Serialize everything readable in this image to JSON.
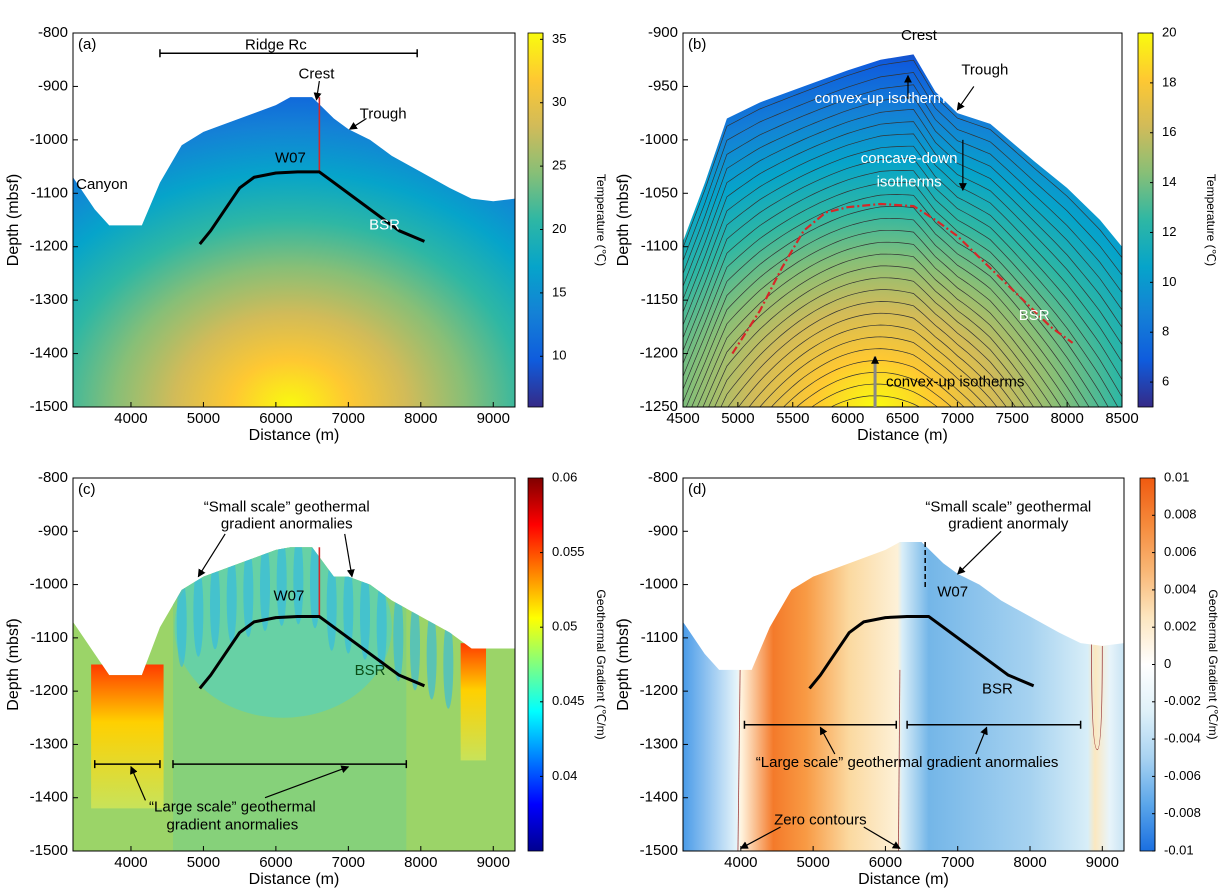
{
  "chart_data": [
    {
      "type": "heatmap",
      "panel": "(a)",
      "xlabel": "Distance (m)",
      "ylabel": "Depth (mbsf)",
      "xlim": [
        3200,
        9300
      ],
      "ylim": [
        -1500,
        -800
      ],
      "xticks": [
        4000,
        5000,
        6000,
        7000,
        8000,
        9000
      ],
      "yticks": [
        -1500,
        -1400,
        -1300,
        -1200,
        -1100,
        -1000,
        -900,
        -800
      ],
      "colormap": "parula",
      "clim": [
        6,
        35.5
      ],
      "cticks": [
        10,
        15,
        20,
        25,
        30,
        35
      ],
      "clabel": "Temperature (℃)",
      "seafloor": {
        "x": [
          3200,
          3500,
          3700,
          4150,
          4400,
          4700,
          5000,
          5500,
          6000,
          6200,
          6500,
          6800,
          7000,
          7300,
          7600,
          8000,
          8400,
          8700,
          9000,
          9300
        ],
        "y": [
          -1070,
          -1130,
          -1160,
          -1160,
          -1080,
          -1010,
          -985,
          -960,
          -935,
          -920,
          -920,
          -960,
          -980,
          -1000,
          -1030,
          -1060,
          -1090,
          -1110,
          -1115,
          -1110
        ]
      },
      "well": {
        "name": "W07",
        "x": 6600,
        "top": -920,
        "bottom": -1060,
        "color": "#d62728",
        "dash": false
      },
      "series": [
        {
          "name": "BSR",
          "color": "#000000",
          "x": [
            4950,
            5100,
            5300,
            5500,
            5700,
            6000,
            6300,
            6600,
            6800,
            7100,
            7400,
            7700,
            8050
          ],
          "values": [
            -1195,
            -1170,
            -1130,
            -1090,
            -1070,
            -1062,
            -1060,
            -1060,
            -1080,
            -1110,
            -1140,
            -1170,
            -1190
          ]
        }
      ],
      "annotations": [
        "Ridge Rc",
        "Crest",
        "Trough",
        "Canyon"
      ]
    },
    {
      "type": "heatmap",
      "panel": "(b)",
      "xlabel": "Distance (m)",
      "ylabel": "Depth (mbsf)",
      "xlim": [
        4500,
        8500
      ],
      "ylim": [
        -1250,
        -900
      ],
      "xticks": [
        4500,
        5000,
        5500,
        6000,
        6500,
        7000,
        7500,
        8000,
        8500
      ],
      "yticks": [
        -1250,
        -1200,
        -1150,
        -1100,
        -1050,
        -1000,
        -950,
        -900
      ],
      "colormap": "parula",
      "contours": true,
      "clim": [
        5,
        20
      ],
      "cticks": [
        6,
        8,
        10,
        12,
        14,
        16,
        18,
        20
      ],
      "clabel": "Temperature (℃)",
      "seafloor": {
        "x": [
          4500,
          4700,
          4900,
          5200,
          5600,
          6000,
          6300,
          6600,
          6800,
          7000,
          7300,
          7700,
          8000,
          8300,
          8500
        ],
        "y": [
          -1095,
          -1040,
          -980,
          -965,
          -950,
          -935,
          -925,
          -920,
          -955,
          -975,
          -985,
          -1020,
          -1045,
          -1075,
          -1100
        ]
      },
      "series": [
        {
          "name": "BSR",
          "color": "#d62728",
          "dash": true,
          "x": [
            4950,
            5200,
            5400,
            5600,
            5800,
            6000,
            6300,
            6600,
            6800,
            7000,
            7300,
            7600,
            7850,
            8050
          ],
          "values": [
            -1200,
            -1160,
            -1120,
            -1085,
            -1068,
            -1063,
            -1060,
            -1062,
            -1075,
            -1090,
            -1120,
            -1150,
            -1175,
            -1190
          ]
        }
      ],
      "annotations": [
        "Crest",
        "Trough",
        "convex-up isotherms",
        "concave-down",
        "isotherms",
        "convex-up isotherms"
      ]
    },
    {
      "type": "heatmap",
      "panel": "(c)",
      "xlabel": "Distance (m)",
      "ylabel": "Depth (mbsf)",
      "xlim": [
        3200,
        9300
      ],
      "ylim": [
        -1500,
        -800
      ],
      "xticks": [
        4000,
        5000,
        6000,
        7000,
        8000,
        9000
      ],
      "yticks": [
        -1500,
        -1400,
        -1300,
        -1200,
        -1100,
        -1000,
        -900,
        -800
      ],
      "colormap": "jet",
      "clim": [
        0.035,
        0.06
      ],
      "cticks": [
        0.04,
        0.045,
        0.05,
        0.055,
        0.06
      ],
      "clabel": "Geothermal Gradient (℃/m)",
      "seafloor": {
        "x": [
          3200,
          3500,
          3700,
          4150,
          4400,
          4700,
          5000,
          5500,
          6000,
          6200,
          6500,
          6800,
          7000,
          7300,
          7600,
          8000,
          8400,
          8700,
          9000,
          9300
        ],
        "y": [
          -1070,
          -1130,
          -1170,
          -1170,
          -1080,
          -1010,
          -985,
          -960,
          -935,
          -930,
          -930,
          -985,
          -985,
          -1000,
          -1030,
          -1060,
          -1090,
          -1120,
          -1120,
          -1120
        ]
      },
      "well": {
        "name": "W07",
        "x": 6600,
        "top": -930,
        "bottom": -1060,
        "color": "#d62728",
        "dash": false
      },
      "series": [
        {
          "name": "BSR",
          "color": "#000000",
          "x": [
            4950,
            5100,
            5300,
            5500,
            5700,
            6000,
            6300,
            6600,
            6800,
            7100,
            7400,
            7700,
            8050
          ],
          "values": [
            -1195,
            -1170,
            -1130,
            -1090,
            -1070,
            -1062,
            -1060,
            -1060,
            -1080,
            -1110,
            -1140,
            -1170,
            -1190
          ]
        }
      ],
      "annotations": [
        "“Small scale” geothermal",
        "gradient anormalies",
        "“Large scale” geothermal",
        "gradient anormalies"
      ]
    },
    {
      "type": "heatmap",
      "panel": "(d)",
      "xlabel": "Distance (m)",
      "ylabel": "Depth (mbsf)",
      "xlim": [
        3200,
        9300
      ],
      "ylim": [
        -1500,
        -800
      ],
      "xticks": [
        4000,
        5000,
        6000,
        7000,
        8000,
        9000
      ],
      "yticks": [
        -1500,
        -1400,
        -1300,
        -1200,
        -1100,
        -1000,
        -900,
        -800
      ],
      "colormap": "diverging",
      "clim": [
        -0.01,
        0.01
      ],
      "cticks": [
        -0.01,
        -0.008,
        -0.006,
        -0.004,
        -0.002,
        0,
        0.002,
        0.004,
        0.006,
        0.008,
        0.01
      ],
      "clabel": "Geothermal Gradient (℃/m)",
      "seafloor": {
        "x": [
          3200,
          3500,
          3700,
          4150,
          4400,
          4700,
          5000,
          5500,
          6000,
          6200,
          6500,
          6800,
          7000,
          7300,
          7600,
          8000,
          8400,
          8700,
          9000,
          9300
        ],
        "y": [
          -1070,
          -1130,
          -1160,
          -1160,
          -1080,
          -1010,
          -985,
          -960,
          -935,
          -920,
          -920,
          -960,
          -980,
          -1000,
          -1030,
          -1060,
          -1090,
          -1110,
          -1115,
          -1110
        ]
      },
      "well": {
        "name": "W07",
        "x": 6550,
        "top": -920,
        "bottom": -1010,
        "color": "#000000",
        "dash": true
      },
      "series": [
        {
          "name": "BSR",
          "color": "#000000",
          "x": [
            4950,
            5100,
            5300,
            5500,
            5700,
            6000,
            6300,
            6600,
            6800,
            7100,
            7400,
            7700,
            8050
          ],
          "values": [
            -1195,
            -1170,
            -1130,
            -1090,
            -1070,
            -1062,
            -1060,
            -1060,
            -1080,
            -1110,
            -1140,
            -1170,
            -1190
          ]
        }
      ],
      "annotations": [
        "“Small scale” geothermal",
        "gradient anormaly",
        "“Large scale” geothermal gradient anormalies",
        "Zero contours"
      ]
    }
  ]
}
